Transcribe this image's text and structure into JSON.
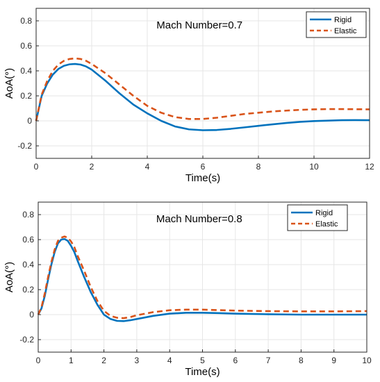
{
  "chart_data": [
    {
      "type": "line",
      "annotation": "Mach Number=0.7",
      "xlabel": "Time(s)",
      "ylabel": "AoA(°)",
      "xlim": [
        0,
        12
      ],
      "ylim": [
        -0.3,
        0.9
      ],
      "xticks": [
        0,
        2,
        4,
        6,
        8,
        10,
        12
      ],
      "yticks": [
        -0.2,
        0,
        0.2,
        0.4,
        0.6,
        0.8
      ],
      "xtick_labels": [
        "0",
        "2",
        "4",
        "6",
        "8",
        "10",
        "12"
      ],
      "ytick_labels": [
        "-0.2",
        "0",
        "0.2",
        "0.4",
        "0.6",
        "0.8"
      ],
      "grid": true,
      "legend_position": "top-right",
      "series": [
        {
          "name": "Rigid",
          "color": "#0072BD",
          "style": "solid",
          "x": [
            0,
            0.2,
            0.4,
            0.6,
            0.8,
            1.0,
            1.2,
            1.4,
            1.6,
            1.8,
            2.0,
            2.5,
            3.0,
            3.5,
            4.0,
            4.5,
            5.0,
            5.5,
            6.0,
            6.5,
            7.0,
            7.5,
            8.0,
            8.5,
            9.0,
            9.5,
            10.0,
            10.5,
            11.0,
            11.5,
            12.0
          ],
          "y": [
            0,
            0.2,
            0.3,
            0.37,
            0.415,
            0.44,
            0.452,
            0.455,
            0.45,
            0.435,
            0.41,
            0.32,
            0.22,
            0.13,
            0.06,
            0.0,
            -0.045,
            -0.068,
            -0.075,
            -0.073,
            -0.064,
            -0.052,
            -0.04,
            -0.028,
            -0.017,
            -0.008,
            -0.002,
            0.002,
            0.005,
            0.006,
            0.005
          ]
        },
        {
          "name": "Elastic",
          "color": "#D95319",
          "style": "dashed",
          "x": [
            0,
            0.2,
            0.4,
            0.6,
            0.8,
            1.0,
            1.2,
            1.4,
            1.6,
            1.8,
            2.0,
            2.5,
            3.0,
            3.5,
            4.0,
            4.5,
            5.0,
            5.5,
            6.0,
            6.5,
            7.0,
            7.5,
            8.0,
            8.5,
            9.0,
            9.5,
            10.0,
            10.5,
            11.0,
            11.5,
            12.0
          ],
          "y": [
            0,
            0.21,
            0.32,
            0.4,
            0.45,
            0.48,
            0.495,
            0.5,
            0.495,
            0.48,
            0.455,
            0.38,
            0.29,
            0.2,
            0.12,
            0.065,
            0.03,
            0.015,
            0.015,
            0.025,
            0.04,
            0.055,
            0.065,
            0.075,
            0.082,
            0.088,
            0.092,
            0.094,
            0.094,
            0.093,
            0.092
          ]
        }
      ]
    },
    {
      "type": "line",
      "annotation": "Mach Number=0.8",
      "xlabel": "Time(s)",
      "ylabel": "AoA(°)",
      "xlim": [
        0,
        10
      ],
      "ylim": [
        -0.3,
        0.9
      ],
      "xticks": [
        0,
        1,
        2,
        3,
        4,
        5,
        6,
        7,
        8,
        9,
        10
      ],
      "yticks": [
        -0.2,
        0,
        0.2,
        0.4,
        0.6,
        0.8
      ],
      "xtick_labels": [
        "0",
        "1",
        "2",
        "3",
        "4",
        "5",
        "6",
        "7",
        "8",
        "9",
        "10"
      ],
      "ytick_labels": [
        "-0.2",
        "0",
        "0.2",
        "0.4",
        "0.6",
        "0.8"
      ],
      "grid": true,
      "legend_position": "top-right",
      "series": [
        {
          "name": "Rigid",
          "color": "#0072BD",
          "style": "solid",
          "x": [
            0,
            0.1,
            0.2,
            0.3,
            0.4,
            0.5,
            0.6,
            0.7,
            0.8,
            0.9,
            1.0,
            1.1,
            1.2,
            1.4,
            1.6,
            1.8,
            2.0,
            2.2,
            2.4,
            2.6,
            2.8,
            3.0,
            3.5,
            4.0,
            4.5,
            5.0,
            5.5,
            6.0,
            7.0,
            8.0,
            9.0,
            10.0
          ],
          "y": [
            0,
            0.05,
            0.15,
            0.28,
            0.4,
            0.5,
            0.57,
            0.6,
            0.605,
            0.59,
            0.55,
            0.5,
            0.43,
            0.3,
            0.18,
            0.08,
            0.0,
            -0.035,
            -0.05,
            -0.052,
            -0.045,
            -0.035,
            -0.01,
            0.008,
            0.015,
            0.015,
            0.012,
            0.008,
            0.003,
            0.0,
            0.0,
            0.0
          ]
        },
        {
          "name": "Elastic",
          "color": "#D95319",
          "style": "dashed",
          "x": [
            0,
            0.1,
            0.2,
            0.3,
            0.4,
            0.5,
            0.6,
            0.7,
            0.8,
            0.9,
            1.0,
            1.1,
            1.2,
            1.4,
            1.6,
            1.8,
            2.0,
            2.2,
            2.4,
            2.6,
            2.8,
            3.0,
            3.5,
            4.0,
            4.5,
            5.0,
            5.5,
            6.0,
            7.0,
            8.0,
            9.0,
            10.0
          ],
          "y": [
            0,
            0.06,
            0.17,
            0.3,
            0.42,
            0.52,
            0.59,
            0.615,
            0.625,
            0.615,
            0.585,
            0.54,
            0.47,
            0.35,
            0.22,
            0.11,
            0.03,
            -0.01,
            -0.025,
            -0.028,
            -0.02,
            -0.005,
            0.02,
            0.035,
            0.04,
            0.04,
            0.036,
            0.032,
            0.028,
            0.026,
            0.026,
            0.028
          ]
        }
      ]
    }
  ]
}
